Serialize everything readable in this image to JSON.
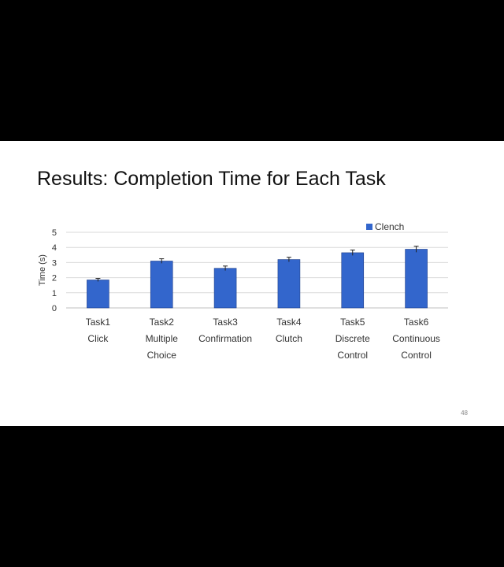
{
  "slide": {
    "title": "Results: Completion Time for Each Task",
    "page_number": "48"
  },
  "chart_data": {
    "type": "bar",
    "title": "",
    "xlabel": "",
    "ylabel": "Time (s)",
    "ylim": [
      0,
      5
    ],
    "yticks": [
      0,
      1,
      2,
      3,
      4,
      5
    ],
    "grid": true,
    "legend_position": "top-right",
    "categories": [
      [
        "Task1",
        "Click"
      ],
      [
        "Task2",
        "Multiple",
        "Choice"
      ],
      [
        "Task3",
        "Confirmation"
      ],
      [
        "Task4",
        "Clutch"
      ],
      [
        "Task5",
        "Discrete",
        "Control"
      ],
      [
        "Task6",
        "Continuous",
        "Control"
      ]
    ],
    "series": [
      {
        "name": "Clench",
        "color": "#3366cc",
        "values": [
          1.85,
          3.1,
          2.62,
          3.2,
          3.65,
          3.88
        ],
        "error": [
          0.1,
          0.15,
          0.15,
          0.15,
          0.18,
          0.2
        ]
      }
    ]
  }
}
